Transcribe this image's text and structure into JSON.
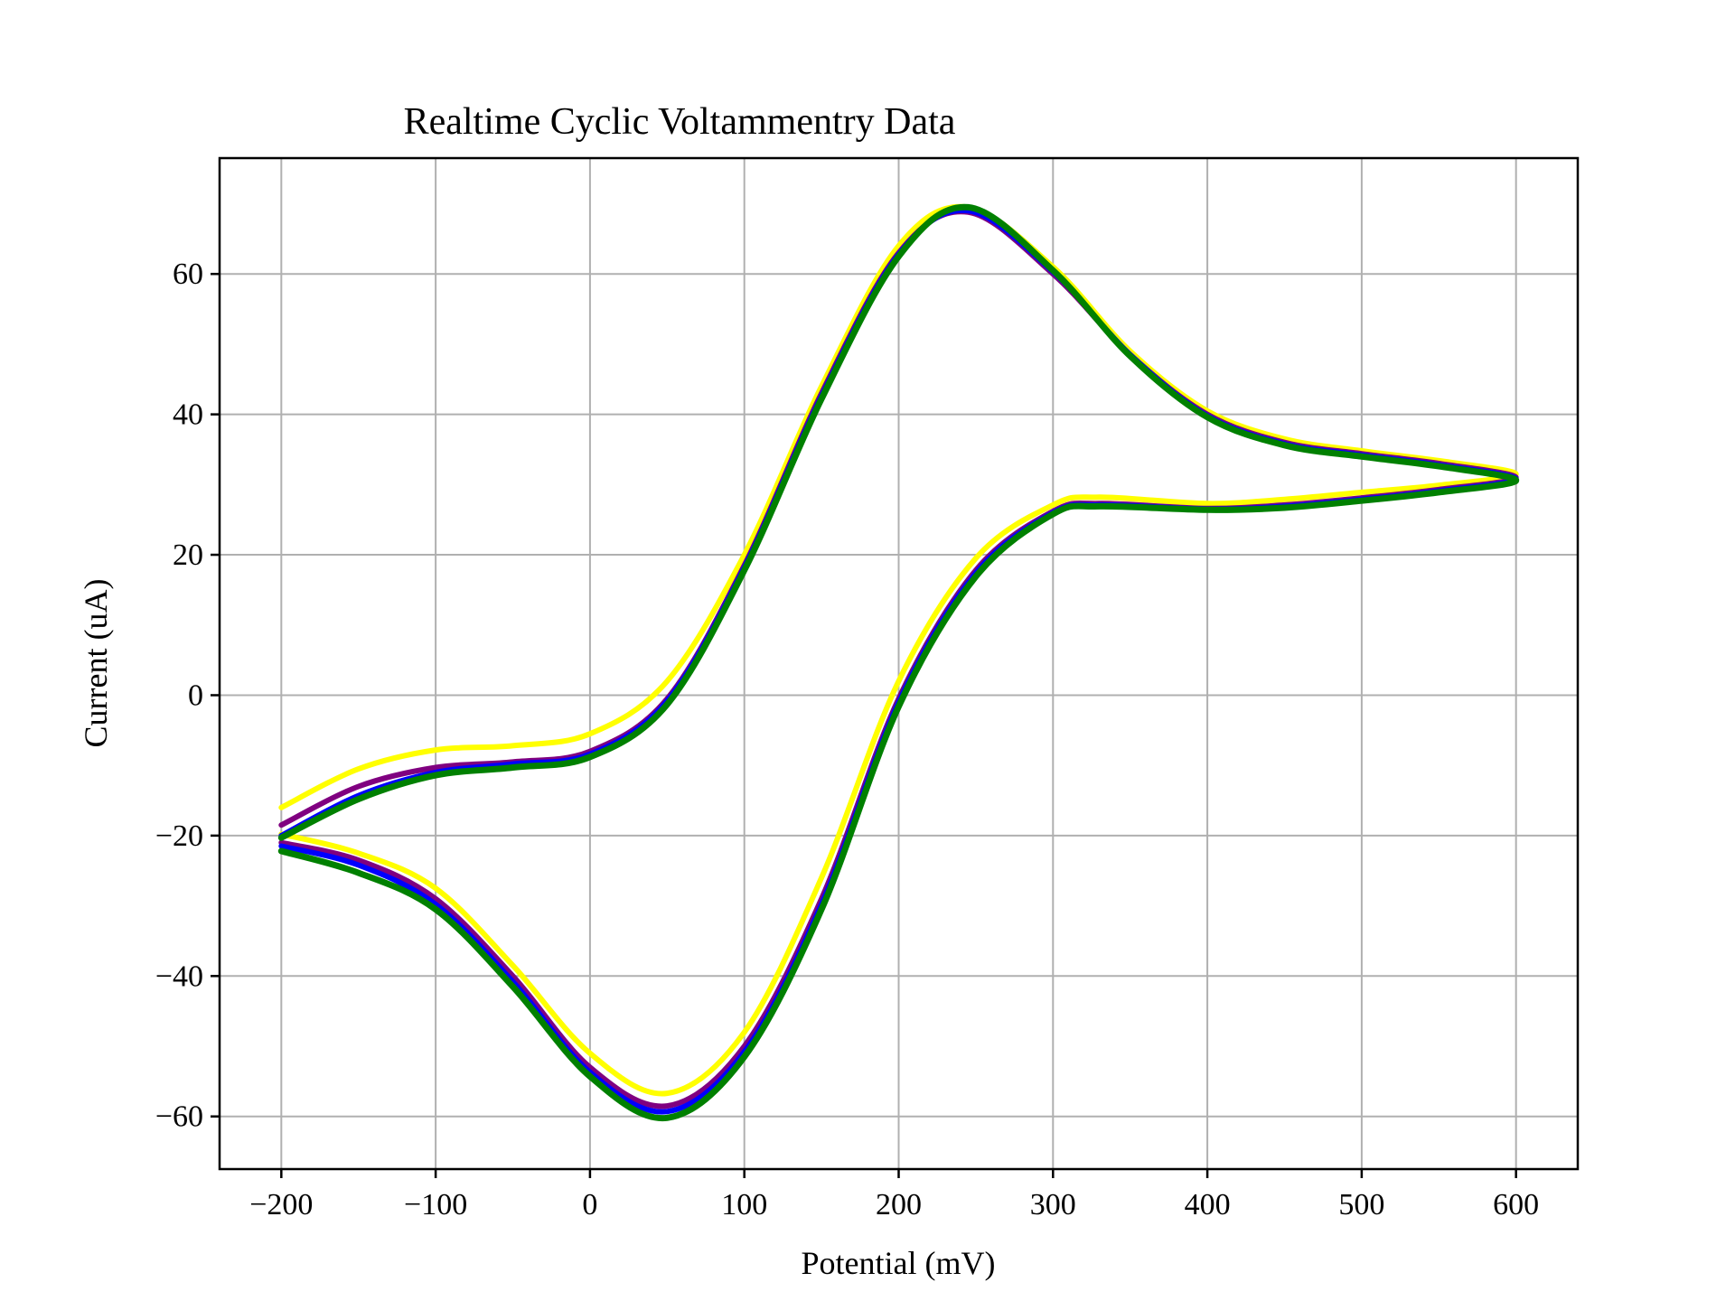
{
  "chart_data": {
    "type": "line",
    "title": "Realtime Cyclic Voltammentry Data",
    "xlabel": "Potential (mV)",
    "ylabel": "Current (uA)",
    "xlim": [
      -240,
      640
    ],
    "ylim": [
      -67.5,
      76.5
    ],
    "grid": true,
    "x_ticks": [
      -200,
      -100,
      0,
      100,
      200,
      300,
      400,
      500,
      600
    ],
    "x_tick_labels": [
      "−200",
      "−100",
      "0",
      "100",
      "200",
      "300",
      "400",
      "500",
      "600"
    ],
    "y_ticks": [
      -60,
      -40,
      -20,
      0,
      20,
      40,
      60
    ],
    "y_tick_labels": [
      "−60",
      "−40",
      "−20",
      "0",
      "20",
      "40",
      "60"
    ],
    "series": [
      {
        "color": "#ffff00",
        "x": [
          -200,
          -150,
          -100,
          -50,
          0,
          50,
          100,
          150,
          200,
          245,
          300,
          350,
          400,
          450,
          500,
          550,
          600,
          550,
          500,
          450,
          400,
          330,
          300,
          250,
          200,
          150,
          100,
          50,
          0,
          -50,
          -100,
          -150,
          -200
        ],
        "y": [
          -16,
          -10.5,
          -7.8,
          -7.2,
          -5.5,
          2,
          20,
          44,
          64,
          69.5,
          61,
          49,
          40.5,
          36.5,
          34.8,
          33.4,
          31.5,
          29.9,
          28.9,
          27.9,
          27.3,
          28.2,
          27.1,
          19.5,
          2,
          -26,
          -48,
          -56.7,
          -51,
          -38.5,
          -27.5,
          -22.5,
          -19.8
        ]
      },
      {
        "color": "#800080",
        "x": [
          -200,
          -150,
          -100,
          -50,
          0,
          50,
          100,
          150,
          200,
          245,
          300,
          350,
          400,
          450,
          500,
          550,
          600,
          550,
          500,
          450,
          400,
          330,
          300,
          250,
          200,
          150,
          100,
          50,
          0,
          -50,
          -100,
          -150,
          -200
        ],
        "y": [
          -18.5,
          -13,
          -10.3,
          -9.5,
          -8,
          -0.5,
          18.5,
          43,
          63,
          68.8,
          60,
          48.5,
          40,
          36,
          34.4,
          33,
          31,
          29.3,
          28.1,
          27.1,
          26.6,
          27.3,
          26.2,
          17.8,
          -0.5,
          -29,
          -50,
          -58.5,
          -53,
          -40,
          -29,
          -23.5,
          -21
        ]
      },
      {
        "color": "#0000ff",
        "x": [
          -200,
          -150,
          -100,
          -50,
          0,
          50,
          100,
          150,
          200,
          245,
          300,
          350,
          400,
          450,
          500,
          550,
          600,
          550,
          500,
          450,
          400,
          330,
          300,
          250,
          200,
          150,
          100,
          50,
          0,
          -50,
          -100,
          -150,
          -200
        ],
        "y": [
          -20,
          -14.3,
          -11,
          -9.8,
          -8.4,
          -0.8,
          18.2,
          42.6,
          62.8,
          69,
          60.3,
          48.5,
          39.8,
          35.8,
          34.2,
          32.8,
          30.8,
          29.1,
          27.9,
          26.9,
          26.5,
          27.1,
          26,
          17.4,
          -1,
          -29.8,
          -50.8,
          -59.3,
          -53.7,
          -40.8,
          -29.8,
          -24.2,
          -21.5
        ]
      },
      {
        "color": "#008000",
        "x": [
          -200,
          -150,
          -100,
          -50,
          0,
          50,
          100,
          150,
          200,
          245,
          300,
          350,
          400,
          450,
          500,
          550,
          600,
          550,
          500,
          450,
          400,
          330,
          300,
          250,
          200,
          150,
          100,
          50,
          0,
          -50,
          -100,
          -150,
          -200
        ],
        "y": [
          -20.3,
          -14.8,
          -11.4,
          -10.3,
          -8.8,
          -1.3,
          17.8,
          42.2,
          62.5,
          69.5,
          60.5,
          48.3,
          39.6,
          35.6,
          34,
          32.6,
          30.6,
          28.9,
          27.7,
          26.7,
          26.4,
          26.9,
          25.8,
          16.9,
          -1.6,
          -30.5,
          -51.5,
          -60.2,
          -54.3,
          -41.5,
          -30.5,
          -25.3,
          -22.2
        ]
      }
    ]
  }
}
